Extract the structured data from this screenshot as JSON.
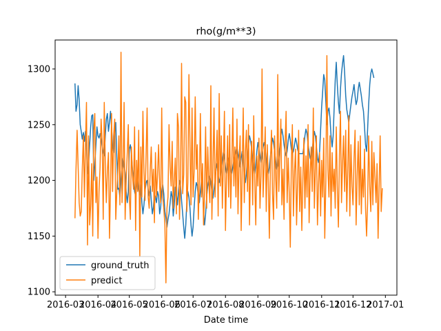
{
  "chart_data": {
    "type": "line",
    "title": "rho(g/m**3)",
    "xlabel": "Date time",
    "ylabel": "",
    "x_range": [
      "2016-02-20",
      "2017-01-12"
    ],
    "x_ticks": [
      "2016-03",
      "2016-04",
      "2016-05",
      "2016-06",
      "2016-07",
      "2016-08",
      "2016-09",
      "2016-10",
      "2016-11",
      "2016-12",
      "2017-01"
    ],
    "ylim": [
      1097,
      1326
    ],
    "y_ticks": [
      1100,
      1150,
      1200,
      1250,
      1300
    ],
    "grid": false,
    "legend_position": "lower-left",
    "x_start": "2016-03-10",
    "x_step_days": 1,
    "series": [
      {
        "name": "ground_truth",
        "color": "#1f77b4",
        "values": [
          1287,
          1262,
          1268,
          1285,
          1272,
          1250,
          1244,
          1237,
          1243,
          1235,
          1244,
          1230,
          1206,
          1214,
          1232,
          1248,
          1258,
          1259,
          1200,
          1215,
          1232,
          1248,
          1240,
          1238,
          1242,
          1237,
          1230,
          1225,
          1222,
          1240,
          1255,
          1260,
          1244,
          1252,
          1262,
          1248,
          1230,
          1225,
          1242,
          1252,
          1220,
          1192,
          1193,
          1185,
          1200,
          1212,
          1220,
          1213,
          1207,
          1190,
          1180,
          1190,
          1228,
          1232,
          1224,
          1210,
          1200,
          1190,
          1186,
          1195,
          1200,
          1192,
          1187,
          1196,
          1180,
          1170,
          1178,
          1190,
          1198,
          1200,
          1192,
          1186,
          1195,
          1182,
          1170,
          1176,
          1188,
          1185,
          1180,
          1190,
          1186,
          1170,
          1176,
          1190,
          1196,
          1188,
          1172,
          1166,
          1158,
          1165,
          1170,
          1180,
          1190,
          1185,
          1168,
          1178,
          1194,
          1188,
          1178,
          1190,
          1200,
          1195,
          1182,
          1170,
          1158,
          1148,
          1160,
          1180,
          1190,
          1185,
          1175,
          1160,
          1150,
          1158,
          1175,
          1190,
          1198,
          1195,
          1185,
          1180,
          1190,
          1200,
          1195,
          1172,
          1160,
          1170,
          1185,
          1195,
          1200,
          1204,
          1198,
          1190,
          1184,
          1192,
          1200,
          1210,
          1215,
          1205,
          1198,
          1203,
          1210,
          1218,
          1225,
          1220,
          1212,
          1206,
          1212,
          1220,
          1216,
          1209,
          1206,
          1212,
          1218,
          1222,
          1226,
          1230,
          1224,
          1218,
          1212,
          1220,
          1226,
          1218,
          1205,
          1198,
          1206,
          1220,
          1232,
          1240,
          1236,
          1228,
          1220,
          1212,
          1206,
          1214,
          1226,
          1234,
          1228,
          1222,
          1216,
          1222,
          1230,
          1234,
          1228,
          1218,
          1210,
          1206,
          1212,
          1222,
          1230,
          1238,
          1234,
          1226,
          1218,
          1210,
          1214,
          1222,
          1230,
          1240,
          1246,
          1240,
          1232,
          1226,
          1222,
          1226,
          1236,
          1242,
          1236,
          1228,
          1224,
          1226,
          1232,
          1238,
          1234,
          1228,
          1224,
          1224,
          1224,
          1224,
          1224,
          1230,
          1240,
          1246,
          1242,
          1232,
          1226,
          1220,
          1218,
          1228,
          1236,
          1244,
          1240,
          1230,
          1220,
          1216,
          1226,
          1246,
          1266,
          1280,
          1295,
          1290,
          1270,
          1250,
          1262,
          1265,
          1256,
          1240,
          1230,
          1240,
          1266,
          1290,
          1306,
          1286,
          1270,
          1260,
          1282,
          1296,
          1305,
          1312,
          1296,
          1276,
          1264,
          1258,
          1252,
          1260,
          1268,
          1275,
          1280,
          1286,
          1276,
          1268,
          1272,
          1282,
          1288,
          1282,
          1276,
          1268,
          1262,
          1248,
          1232,
          1226,
          1246,
          1268,
          1286,
          1296,
          1300,
          1296,
          1292
        ]
      },
      {
        "name": "predict",
        "color": "#ff7f0e",
        "values": [
          1166,
          1210,
          1245,
          1212,
          1180,
          1168,
          1172,
          1210,
          1240,
          1185,
          1230,
          1270,
          1142,
          1240,
          1160,
          1178,
          1215,
          1150,
          1245,
          1260,
          1180,
          1203,
          1148,
          1190,
          1212,
          1255,
          1235,
          1165,
          1270,
          1215,
          1180,
          1208,
          1225,
          1148,
          1195,
          1260,
          1190,
          1240,
          1255,
          1165,
          1190,
          1210,
          1240,
          1178,
          1315,
          1180,
          1208,
          1270,
          1165,
          1200,
          1225,
          1250,
          1185,
          1165,
          1230,
          1205,
          1192,
          1248,
          1155,
          1218,
          1190,
          1245,
          1132,
          1230,
          1185,
          1262,
          1208,
          1182,
          1222,
          1265,
          1185,
          1175,
          1210,
          1230,
          1190,
          1210,
          1162,
          1225,
          1185,
          1205,
          1232,
          1195,
          1180,
          1265,
          1185,
          1175,
          1160,
          1108,
          1175,
          1185,
          1250,
          1212,
          1195,
          1235,
          1175,
          1200,
          1220,
          1170,
          1260,
          1248,
          1165,
          1198,
          1305,
          1188,
          1205,
          1275,
          1270,
          1172,
          1198,
          1295,
          1230,
          1178,
          1265,
          1185,
          1208,
          1275,
          1210,
          1232,
          1165,
          1198,
          1260,
          1185,
          1215,
          1160,
          1190,
          1248,
          1175,
          1230,
          1200,
          1180,
          1285,
          1165,
          1210,
          1265,
          1185,
          1215,
          1245,
          1168,
          1278,
          1195,
          1240,
          1175,
          1218,
          1262,
          1155,
          1205,
          1240,
          1185,
          1250,
          1175,
          1212,
          1265,
          1195,
          1230,
          1185,
          1255,
          1170,
          1218,
          1240,
          1155,
          1208,
          1265,
          1180,
          1225,
          1245,
          1190,
          1250,
          1160,
          1212,
          1235,
          1178,
          1258,
          1200,
          1160,
          1222,
          1195,
          1238,
          1175,
          1205,
          1300,
          1185,
          1215,
          1248,
          1172,
          1232,
          1198,
          1148,
          1218,
          1245,
          1188,
          1165,
          1240,
          1205,
          1175,
          1295,
          1190,
          1222,
          1255,
          1178,
          1210,
          1165,
          1232,
          1262,
          1180,
          1220,
          1188,
          1140,
          1215,
          1250,
          1168,
          1208,
          1228,
          1160,
          1198,
          1245,
          1172,
          1212,
          1155,
          1200,
          1238,
          1175,
          1222,
          1185,
          1250,
          1162,
          1205,
          1230,
          1190,
          1265,
          1175,
          1210,
          1240,
          1160,
          1195,
          1225,
          1168,
          1218,
          1185,
          1238,
          1148,
          1200,
          1312,
          1210,
          1185,
          1240,
          1168,
          1225,
          1190,
          1210,
          1175,
          1248,
          1195,
          1158,
          1222,
          1262,
          1180,
          1215,
          1240,
          1190,
          1245,
          1172,
          1210,
          1258,
          1168,
          1232,
          1195,
          1178,
          1220,
          1245,
          1160,
          1205,
          1235,
          1178,
          1240,
          1170,
          1210,
          1185,
          1228,
          1175,
          1150,
          1180,
          1240,
          1195,
          1172,
          1235,
          1178,
          1225,
          1205,
          1180,
          1215,
          1148,
          1193,
          1240,
          1172,
          1193
        ]
      }
    ]
  }
}
